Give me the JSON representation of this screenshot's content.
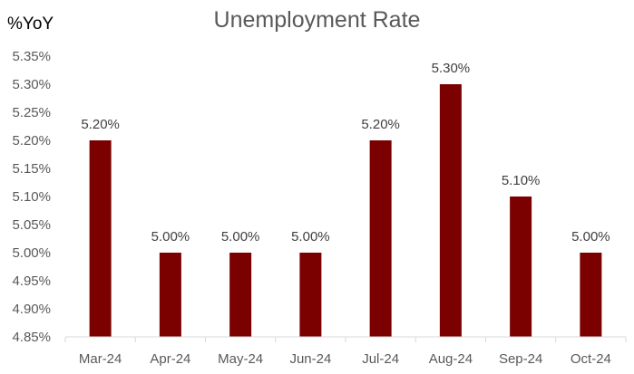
{
  "chart_data": {
    "type": "bar",
    "title": "Unemployment Rate",
    "ylabel": "%YoY",
    "xlabel": "",
    "categories": [
      "Mar-24",
      "Apr-24",
      "May-24",
      "Jun-24",
      "Jul-24",
      "Aug-24",
      "Sep-24",
      "Oct-24"
    ],
    "values": [
      5.2,
      5.0,
      5.0,
      5.0,
      5.2,
      5.3,
      5.1,
      5.0
    ],
    "data_labels": [
      "5.20%",
      "5.00%",
      "5.00%",
      "5.00%",
      "5.20%",
      "5.30%",
      "5.10%",
      "5.00%"
    ],
    "ylim": [
      4.85,
      5.35
    ],
    "yticks": [
      4.85,
      4.9,
      4.95,
      5.0,
      5.05,
      5.1,
      5.15,
      5.2,
      5.25,
      5.3,
      5.35
    ],
    "ytick_labels": [
      "4.85%",
      "4.90%",
      "4.95%",
      "5.00%",
      "5.05%",
      "5.10%",
      "5.15%",
      "5.20%",
      "5.25%",
      "5.30%",
      "5.35%"
    ],
    "grid": false,
    "legend": "none",
    "bar_color": "#7B0000",
    "axis_color": "#D9D9D9"
  }
}
